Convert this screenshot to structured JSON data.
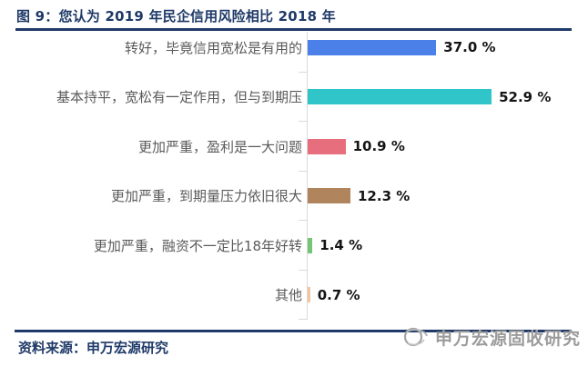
{
  "title": "图 9：您认为 2019 年民企信用风险相比 2018 年",
  "source": "资料来源：申万宏源研究",
  "watermark": {
    "text": "申万宏源固收研究",
    "icon": "sws-logo-icon",
    "color": "#9C9C9C"
  },
  "colors": {
    "title_navy": "#1F3A68",
    "rule_navy": "#1F3A68",
    "category_label_gray": "#5A5A5A",
    "value_label_black": "#141414",
    "axis_gray": "#D9D9D9",
    "background": "#FFFFFF"
  },
  "chart_data": {
    "type": "bar",
    "orientation": "horizontal",
    "title": "您认为 2019 年民企信用风险相比 2018 年",
    "categories": [
      "转好，毕竟信用宽松是有用的",
      "基本持平，宽松有一定作用，但与到期压",
      "更加严重，盈利是一大问题",
      "更加严重，到期量压力依旧很大",
      "更加严重，融资不一定比18年好转",
      "其他"
    ],
    "values": [
      37.0,
      52.9,
      10.9,
      12.3,
      1.4,
      0.7
    ],
    "value_labels": [
      "37.0 %",
      "52.9 %",
      "10.9 %",
      "12.3 %",
      "1.4 %",
      "0.7 %"
    ],
    "bar_colors": [
      "#4A80E8",
      "#30C6C9",
      "#E76E7C",
      "#B0845C",
      "#76C478",
      "#F3C49E"
    ],
    "unit": "%",
    "xlim": [
      0,
      55
    ],
    "legend": false,
    "gridlines": false,
    "data_labels": "outside-end"
  }
}
